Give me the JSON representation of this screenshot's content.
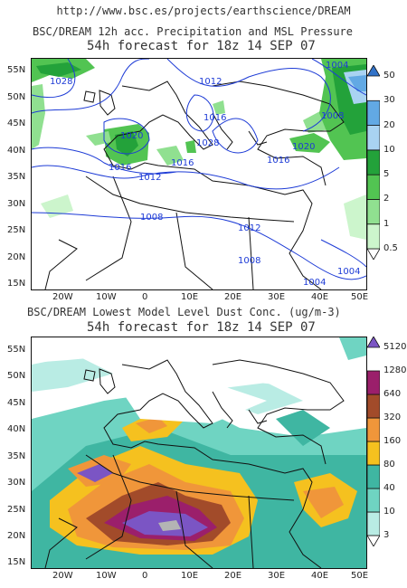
{
  "url": "http://www.bsc.es/projects/earthscience/DREAM",
  "top": {
    "title1": "BSC/DREAM 12h acc. Precipitation and MSL Pressure",
    "title2": "54h forecast for 18z 14 SEP 07",
    "isobars": [
      "1004",
      "1028",
      "1012",
      "1016",
      "1020",
      "1028",
      "1016",
      "1016",
      "1012",
      "1008",
      "1020",
      "1016",
      "1008",
      "1012",
      "1008",
      "1004",
      "1004"
    ],
    "legend": {
      "levels": [
        "0.5",
        "1",
        "2",
        "5",
        "10",
        "20",
        "30",
        "50"
      ],
      "colors": [
        "#ffffff",
        "#ccf5cc",
        "#90e090",
        "#52c452",
        "#23a23a",
        "#a9d3f2",
        "#62a9e4",
        "#3172c8"
      ]
    }
  },
  "bottom": {
    "title1": "BSC/DREAM Lowest Model Level Dust Conc. (ug/m-3)",
    "title2": "54h forecast for 18z 14 SEP 07",
    "legend": {
      "levels": [
        "3",
        "10",
        "40",
        "80",
        "160",
        "320",
        "640",
        "1280",
        "5120"
      ],
      "colors": [
        "#ffffff",
        "#b9ece4",
        "#6fd4c2",
        "#3fb6a2",
        "#f5c11f",
        "#f0963a",
        "#a24b2a",
        "#9b1f6b",
        "#7b55c4"
      ]
    }
  },
  "lat_labels": [
    "55N",
    "50N",
    "45N",
    "40N",
    "35N",
    "30N",
    "25N",
    "20N",
    "15N"
  ],
  "lon_labels": [
    "20W",
    "10W",
    "0",
    "10E",
    "20E",
    "30E",
    "40E",
    "50E"
  ]
}
